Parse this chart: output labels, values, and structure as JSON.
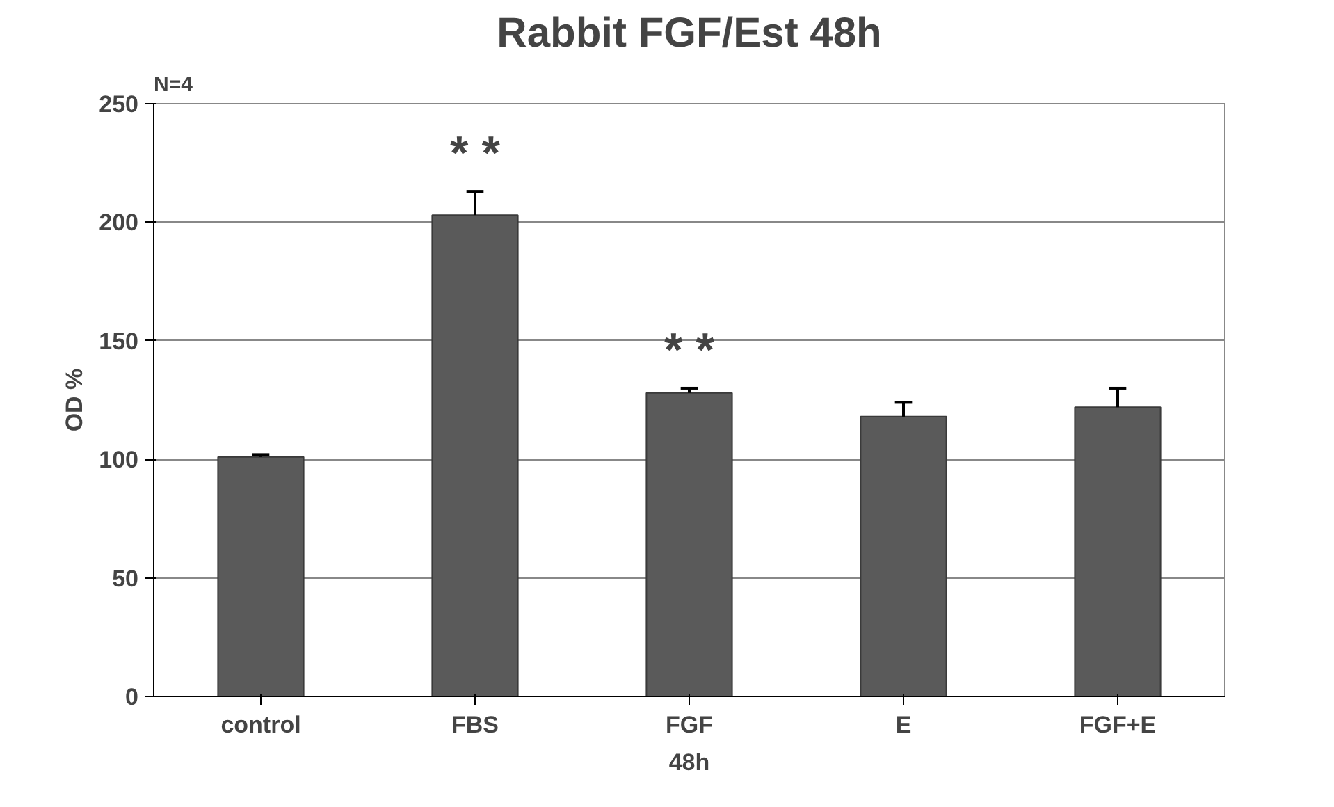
{
  "chart_data": {
    "type": "bar",
    "title": "Rabbit FGF/Est 48h",
    "xlabel": "48h",
    "ylabel": "OD %",
    "categories": [
      "control",
      "FBS",
      "FGF",
      "E",
      "FGF+E"
    ],
    "values": [
      101,
      203,
      128,
      118,
      122
    ],
    "errors": [
      [
        101,
        102
      ],
      [
        203,
        213
      ],
      [
        128,
        130
      ],
      [
        118,
        124
      ],
      [
        122,
        130
      ]
    ],
    "color": "#5a5a5a",
    "ylim": [
      0,
      250
    ],
    "yticks": [
      0,
      50,
      100,
      150,
      200,
      250
    ],
    "grid": "y",
    "annotations": [
      "N=4",
      "* *",
      "* *"
    ]
  }
}
